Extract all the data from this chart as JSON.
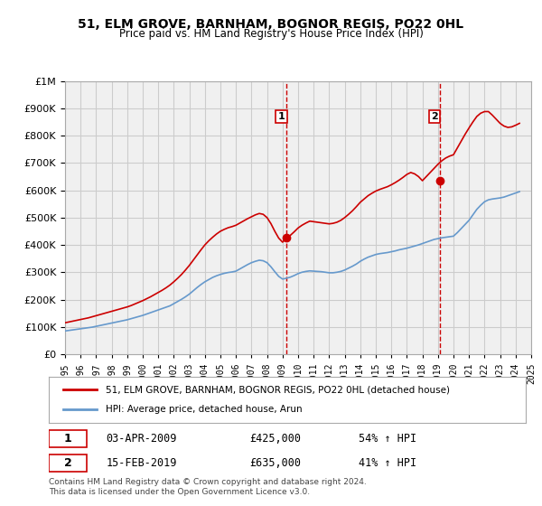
{
  "title": "51, ELM GROVE, BARNHAM, BOGNOR REGIS, PO22 0HL",
  "subtitle": "Price paid vs. HM Land Registry's House Price Index (HPI)",
  "legend_line1": "51, ELM GROVE, BARNHAM, BOGNOR REGIS, PO22 0HL (detached house)",
  "legend_line2": "HPI: Average price, detached house, Arun",
  "annotation1_label": "1",
  "annotation1_date": "03-APR-2009",
  "annotation1_price": "£425,000",
  "annotation1_hpi": "54% ↑ HPI",
  "annotation1_year": 2009.25,
  "annotation1_value": 425000,
  "annotation2_label": "2",
  "annotation2_date": "15-FEB-2019",
  "annotation2_price": "£635,000",
  "annotation2_hpi": "41% ↑ HPI",
  "annotation2_year": 2019.12,
  "annotation2_value": 635000,
  "footer": "Contains HM Land Registry data © Crown copyright and database right 2024.\nThis data is licensed under the Open Government Licence v3.0.",
  "red_color": "#cc0000",
  "blue_color": "#6699cc",
  "grid_color": "#cccccc",
  "background_color": "#ffffff",
  "plot_bg_color": "#f0f0f0",
  "vline_color": "#cc0000",
  "ylim": [
    0,
    1000000
  ],
  "xlim_start": 1995,
  "xlim_end": 2025,
  "hpi_years": [
    1995,
    1995.25,
    1995.5,
    1995.75,
    1996,
    1996.25,
    1996.5,
    1996.75,
    1997,
    1997.25,
    1997.5,
    1997.75,
    1998,
    1998.25,
    1998.5,
    1998.75,
    1999,
    1999.25,
    1999.5,
    1999.75,
    2000,
    2000.25,
    2000.5,
    2000.75,
    2001,
    2001.25,
    2001.5,
    2001.75,
    2002,
    2002.25,
    2002.5,
    2002.75,
    2003,
    2003.25,
    2003.5,
    2003.75,
    2004,
    2004.25,
    2004.5,
    2004.75,
    2005,
    2005.25,
    2005.5,
    2005.75,
    2006,
    2006.25,
    2006.5,
    2006.75,
    2007,
    2007.25,
    2007.5,
    2007.75,
    2008,
    2008.25,
    2008.5,
    2008.75,
    2009,
    2009.25,
    2009.5,
    2009.75,
    2010,
    2010.25,
    2010.5,
    2010.75,
    2011,
    2011.25,
    2011.5,
    2011.75,
    2012,
    2012.25,
    2012.5,
    2012.75,
    2013,
    2013.25,
    2013.5,
    2013.75,
    2014,
    2014.25,
    2014.5,
    2014.75,
    2015,
    2015.25,
    2015.5,
    2015.75,
    2016,
    2016.25,
    2016.5,
    2016.75,
    2017,
    2017.25,
    2017.5,
    2017.75,
    2018,
    2018.25,
    2018.5,
    2018.75,
    2019,
    2019.25,
    2019.5,
    2019.75,
    2020,
    2020.25,
    2020.5,
    2020.75,
    2021,
    2021.25,
    2021.5,
    2021.75,
    2022,
    2022.25,
    2022.5,
    2022.75,
    2023,
    2023.25,
    2023.5,
    2023.75,
    2024,
    2024.25
  ],
  "hpi_values": [
    85000,
    87000,
    89000,
    91000,
    93000,
    95000,
    97000,
    99000,
    102000,
    105000,
    108000,
    111000,
    114000,
    117000,
    120000,
    123000,
    126000,
    130000,
    134000,
    138000,
    142000,
    147000,
    152000,
    157000,
    162000,
    167000,
    172000,
    177000,
    185000,
    193000,
    201000,
    210000,
    220000,
    232000,
    244000,
    255000,
    265000,
    273000,
    281000,
    287000,
    292000,
    296000,
    299000,
    301000,
    304000,
    312000,
    320000,
    328000,
    335000,
    340000,
    344000,
    342000,
    335000,
    320000,
    302000,
    285000,
    275000,
    278000,
    282000,
    288000,
    295000,
    300000,
    303000,
    305000,
    304000,
    303000,
    302000,
    300000,
    298000,
    298000,
    300000,
    303000,
    308000,
    315000,
    322000,
    330000,
    340000,
    348000,
    355000,
    360000,
    365000,
    368000,
    370000,
    372000,
    375000,
    378000,
    382000,
    385000,
    388000,
    392000,
    396000,
    400000,
    405000,
    410000,
    415000,
    420000,
    423000,
    426000,
    428000,
    430000,
    432000,
    445000,
    460000,
    475000,
    490000,
    510000,
    530000,
    545000,
    558000,
    565000,
    568000,
    570000,
    572000,
    575000,
    580000,
    585000,
    590000,
    595000
  ],
  "red_years": [
    1995,
    1995.25,
    1995.5,
    1995.75,
    1996,
    1996.25,
    1996.5,
    1996.75,
    1997,
    1997.25,
    1997.5,
    1997.75,
    1998,
    1998.25,
    1998.5,
    1998.75,
    1999,
    1999.25,
    1999.5,
    1999.75,
    2000,
    2000.25,
    2000.5,
    2000.75,
    2001,
    2001.25,
    2001.5,
    2001.75,
    2002,
    2002.25,
    2002.5,
    2002.75,
    2003,
    2003.25,
    2003.5,
    2003.75,
    2004,
    2004.25,
    2004.5,
    2004.75,
    2005,
    2005.25,
    2005.5,
    2005.75,
    2006,
    2006.25,
    2006.5,
    2006.75,
    2007,
    2007.25,
    2007.5,
    2007.75,
    2008,
    2008.25,
    2008.5,
    2008.75,
    2009,
    2009.25,
    2009.5,
    2009.75,
    2010,
    2010.25,
    2010.5,
    2010.75,
    2011,
    2011.25,
    2011.5,
    2011.75,
    2012,
    2012.25,
    2012.5,
    2012.75,
    2013,
    2013.25,
    2013.5,
    2013.75,
    2014,
    2014.25,
    2014.5,
    2014.75,
    2015,
    2015.25,
    2015.5,
    2015.75,
    2016,
    2016.25,
    2016.5,
    2016.75,
    2017,
    2017.25,
    2017.5,
    2017.75,
    2018,
    2018.25,
    2018.5,
    2018.75,
    2019,
    2019.25,
    2019.5,
    2019.75,
    2020,
    2020.25,
    2020.5,
    2020.75,
    2021,
    2021.25,
    2021.5,
    2021.75,
    2022,
    2022.25,
    2022.5,
    2022.75,
    2023,
    2023.25,
    2023.5,
    2023.75,
    2024,
    2024.25
  ],
  "red_values": [
    115000,
    118000,
    121000,
    124000,
    127000,
    130000,
    133000,
    137000,
    141000,
    145000,
    149000,
    153000,
    157000,
    161000,
    165000,
    169000,
    173000,
    178000,
    184000,
    190000,
    196000,
    203000,
    210000,
    218000,
    226000,
    234000,
    243000,
    253000,
    265000,
    278000,
    292000,
    308000,
    325000,
    344000,
    363000,
    382000,
    400000,
    415000,
    428000,
    440000,
    450000,
    457000,
    463000,
    467000,
    472000,
    480000,
    488000,
    496000,
    503000,
    510000,
    515000,
    512000,
    500000,
    478000,
    450000,
    425000,
    410000,
    425000,
    435000,
    448000,
    462000,
    472000,
    480000,
    487000,
    485000,
    483000,
    481000,
    479000,
    477000,
    479000,
    483000,
    490000,
    500000,
    512000,
    525000,
    540000,
    556000,
    568000,
    580000,
    589000,
    597000,
    603000,
    608000,
    613000,
    620000,
    628000,
    637000,
    647000,
    658000,
    665000,
    660000,
    650000,
    635000,
    650000,
    665000,
    680000,
    695000,
    708000,
    718000,
    725000,
    730000,
    755000,
    780000,
    805000,
    828000,
    850000,
    870000,
    882000,
    888000,
    888000,
    875000,
    860000,
    845000,
    835000,
    830000,
    832000,
    838000,
    845000
  ]
}
